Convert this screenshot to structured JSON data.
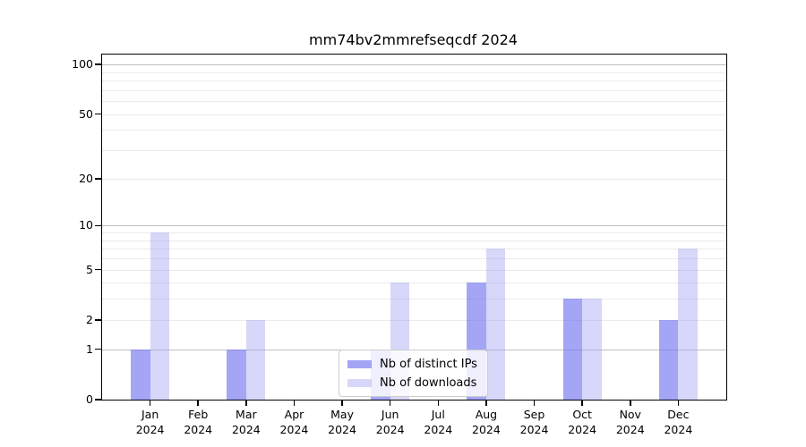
{
  "chart_data": {
    "type": "bar",
    "title": "mm74bv2mmrefseqcdf 2024",
    "categories": [
      "Jan",
      "Feb",
      "Mar",
      "Apr",
      "May",
      "Jun",
      "Jul",
      "Aug",
      "Sep",
      "Oct",
      "Nov",
      "Dec"
    ],
    "category_year": "2024",
    "series": [
      {
        "name": "Nb of distinct IPs",
        "color": "rgba(110,110,240,0.62)",
        "values": [
          1,
          0,
          1,
          0,
          0,
          1,
          0,
          4,
          0,
          3,
          0,
          2
        ]
      },
      {
        "name": "Nb of downloads",
        "color": "rgba(160,160,240,0.42)",
        "values": [
          9,
          0,
          2,
          0,
          0,
          4,
          0,
          7,
          0,
          3,
          0,
          7
        ]
      }
    ],
    "yscale": "log1p",
    "ylim": [
      0,
      115
    ],
    "yticks": [
      0,
      1,
      2,
      5,
      10,
      20,
      50,
      100
    ],
    "grid_major": [
      1,
      10,
      100
    ],
    "grid_minor": [
      2,
      3,
      4,
      5,
      6,
      7,
      8,
      9,
      20,
      30,
      40,
      50,
      60,
      70,
      80,
      90
    ],
    "grid_major_color": "#c0c0c0",
    "grid_minor_color": "#ebebeb",
    "legend_position": "lower center",
    "xlabel": "",
    "ylabel": ""
  }
}
